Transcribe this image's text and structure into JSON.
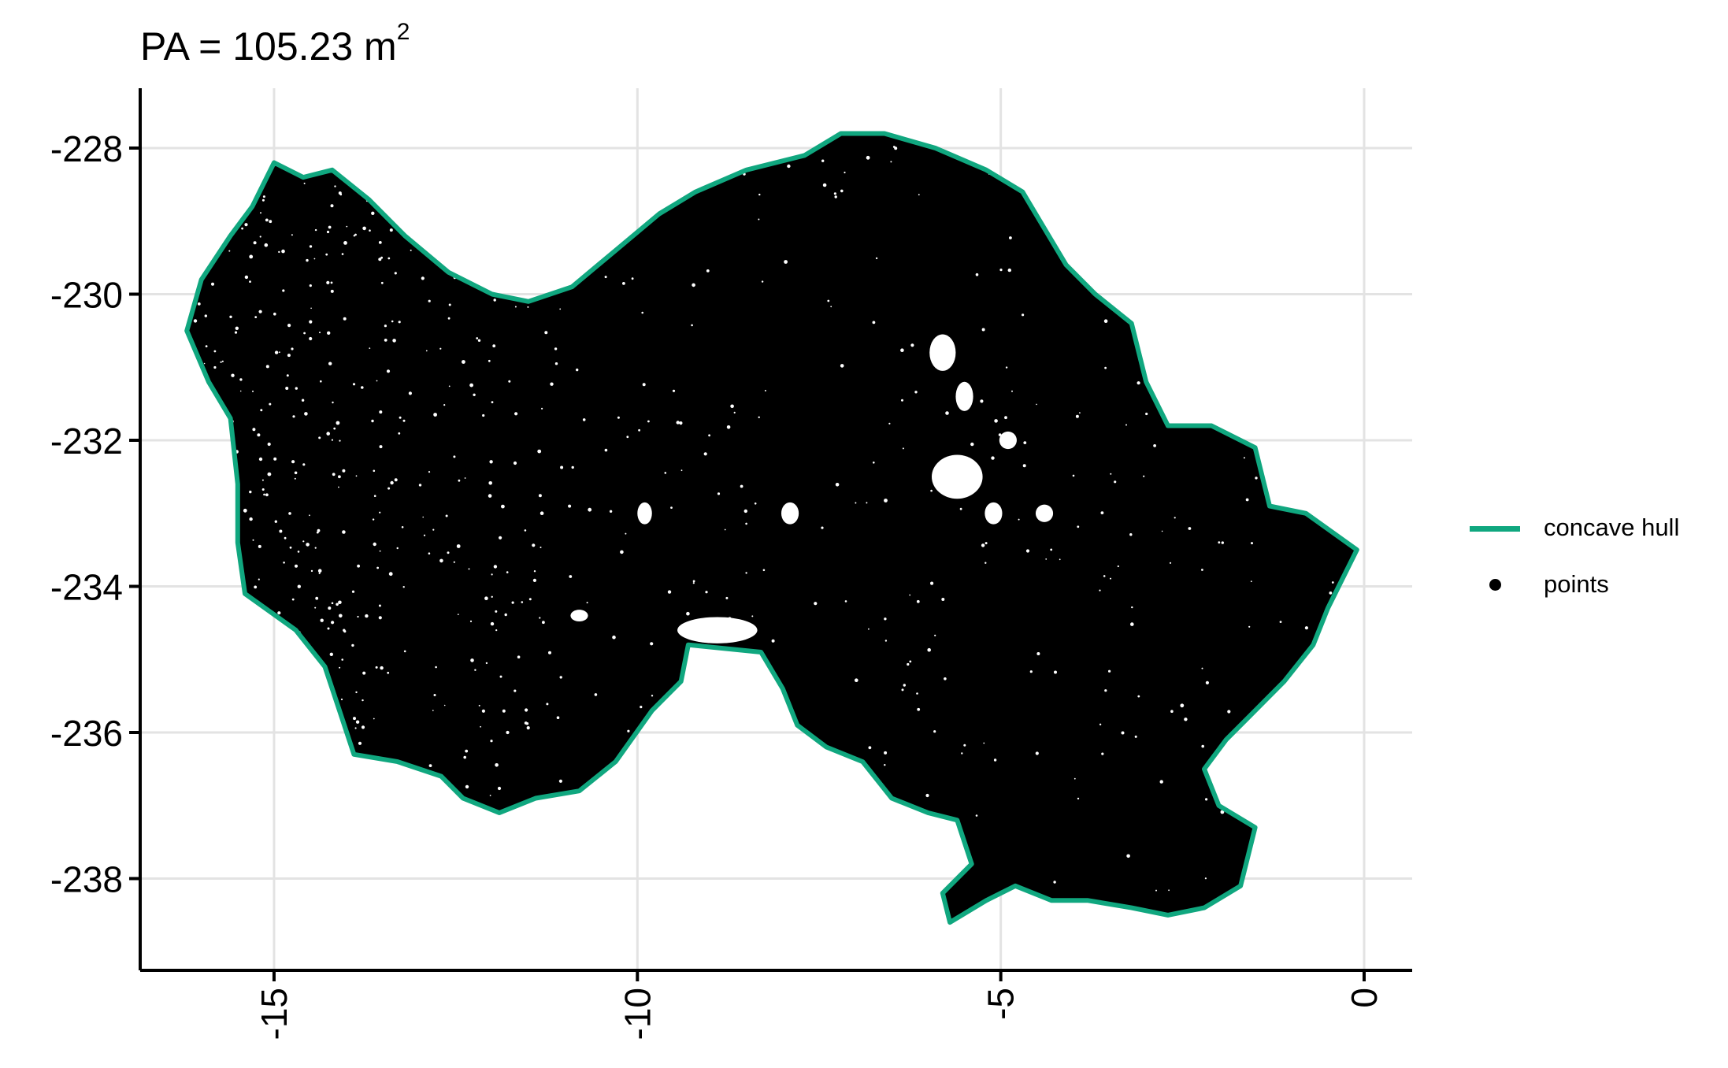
{
  "chart_data": {
    "type": "scatter",
    "title": "PA = 105.23 m",
    "title_superscript": "2",
    "xlabel": "",
    "ylabel": "",
    "xlim": [
      -16.5,
      0.6
    ],
    "ylim": [
      -239.2,
      -227.2
    ],
    "x_ticks": [
      -15,
      -10,
      -5,
      0
    ],
    "y_ticks": [
      -228,
      -230,
      -232,
      -234,
      -236,
      -238
    ],
    "x_tick_labels": [
      "-15",
      "-10",
      "-5",
      "0"
    ],
    "y_tick_labels": [
      "-228",
      "-230",
      "-232",
      "-234",
      "-236",
      "-238"
    ],
    "grid": true,
    "legend_position": "right",
    "series": [
      {
        "name": "concave hull",
        "kind": "polygon",
        "color": "#10A77F"
      },
      {
        "name": "points",
        "kind": "points",
        "color": "#000000"
      }
    ],
    "hull": [
      [
        -15.0,
        -228.2
      ],
      [
        -14.6,
        -228.4
      ],
      [
        -14.2,
        -228.3
      ],
      [
        -13.7,
        -228.7
      ],
      [
        -13.2,
        -229.2
      ],
      [
        -12.6,
        -229.7
      ],
      [
        -12.0,
        -230.0
      ],
      [
        -11.5,
        -230.1
      ],
      [
        -10.9,
        -229.9
      ],
      [
        -10.3,
        -229.4
      ],
      [
        -9.7,
        -228.9
      ],
      [
        -9.2,
        -228.6
      ],
      [
        -8.5,
        -228.3
      ],
      [
        -7.7,
        -228.1
      ],
      [
        -7.2,
        -227.8
      ],
      [
        -6.6,
        -227.8
      ],
      [
        -5.9,
        -228.0
      ],
      [
        -5.2,
        -228.3
      ],
      [
        -4.7,
        -228.6
      ],
      [
        -4.4,
        -229.1
      ],
      [
        -4.1,
        -229.6
      ],
      [
        -3.7,
        -230.0
      ],
      [
        -3.2,
        -230.4
      ],
      [
        -3.0,
        -231.2
      ],
      [
        -2.7,
        -231.8
      ],
      [
        -2.1,
        -231.8
      ],
      [
        -1.5,
        -232.1
      ],
      [
        -1.3,
        -232.9
      ],
      [
        -0.8,
        -233.0
      ],
      [
        -0.1,
        -233.5
      ],
      [
        -0.5,
        -234.3
      ],
      [
        -0.7,
        -234.8
      ],
      [
        -1.1,
        -235.3
      ],
      [
        -1.6,
        -235.8
      ],
      [
        -1.9,
        -236.1
      ],
      [
        -2.2,
        -236.5
      ],
      [
        -2.0,
        -237.0
      ],
      [
        -1.5,
        -237.3
      ],
      [
        -1.6,
        -237.7
      ],
      [
        -1.7,
        -238.1
      ],
      [
        -2.2,
        -238.4
      ],
      [
        -2.7,
        -238.5
      ],
      [
        -3.2,
        -238.4
      ],
      [
        -3.8,
        -238.3
      ],
      [
        -4.3,
        -238.3
      ],
      [
        -4.8,
        -238.1
      ],
      [
        -5.2,
        -238.3
      ],
      [
        -5.7,
        -238.6
      ],
      [
        -5.8,
        -238.2
      ],
      [
        -5.4,
        -237.8
      ],
      [
        -5.6,
        -237.2
      ],
      [
        -6.0,
        -237.1
      ],
      [
        -6.5,
        -236.9
      ],
      [
        -6.9,
        -236.4
      ],
      [
        -7.4,
        -236.2
      ],
      [
        -7.8,
        -235.9
      ],
      [
        -8.0,
        -235.4
      ],
      [
        -8.3,
        -234.9
      ],
      [
        -9.3,
        -234.8
      ],
      [
        -9.4,
        -235.3
      ],
      [
        -9.8,
        -235.7
      ],
      [
        -10.3,
        -236.4
      ],
      [
        -10.8,
        -236.8
      ],
      [
        -11.4,
        -236.9
      ],
      [
        -11.9,
        -237.1
      ],
      [
        -12.4,
        -236.9
      ],
      [
        -12.7,
        -236.6
      ],
      [
        -13.3,
        -236.4
      ],
      [
        -13.9,
        -236.3
      ],
      [
        -14.1,
        -235.7
      ],
      [
        -14.3,
        -235.1
      ],
      [
        -14.7,
        -234.6
      ],
      [
        -15.4,
        -234.1
      ],
      [
        -15.5,
        -233.4
      ],
      [
        -15.5,
        -232.6
      ],
      [
        -15.6,
        -231.7
      ],
      [
        -15.9,
        -231.2
      ],
      [
        -16.2,
        -230.5
      ],
      [
        -16.0,
        -229.8
      ],
      [
        -15.6,
        -229.2
      ],
      [
        -15.3,
        -228.8
      ]
    ],
    "point_gaps": [
      {
        "cx": -5.6,
        "cy": -232.5,
        "rx": 0.35,
        "ry": 0.3
      },
      {
        "cx": -5.8,
        "cy": -230.8,
        "rx": 0.18,
        "ry": 0.25
      },
      {
        "cx": -5.5,
        "cy": -231.4,
        "rx": 0.12,
        "ry": 0.2
      },
      {
        "cx": -4.9,
        "cy": -232.0,
        "rx": 0.12,
        "ry": 0.12
      },
      {
        "cx": -4.4,
        "cy": -233.0,
        "rx": 0.12,
        "ry": 0.12
      },
      {
        "cx": -5.1,
        "cy": -233.0,
        "rx": 0.12,
        "ry": 0.15
      },
      {
        "cx": -8.9,
        "cy": -234.6,
        "rx": 0.55,
        "ry": 0.18
      },
      {
        "cx": -9.9,
        "cy": -233.0,
        "rx": 0.1,
        "ry": 0.15
      },
      {
        "cx": -7.9,
        "cy": -233.0,
        "rx": 0.12,
        "ry": 0.15
      },
      {
        "cx": -10.8,
        "cy": -234.4,
        "rx": 0.12,
        "ry": 0.08
      }
    ]
  }
}
